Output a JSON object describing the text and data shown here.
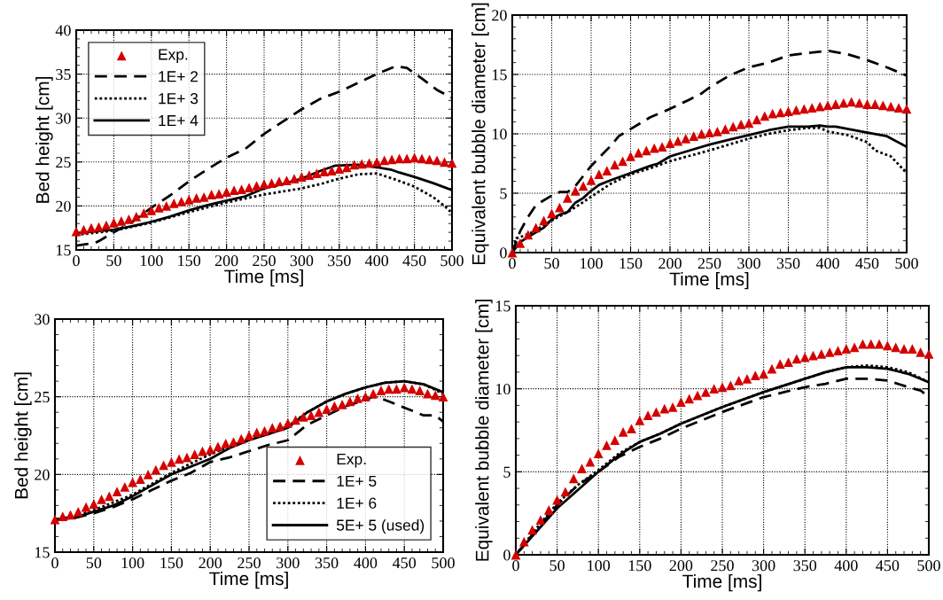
{
  "chart_data": [
    {
      "type": "line",
      "xlabel": "Time [ms]",
      "ylabel": "Bed height [cm]",
      "xlim": [
        0,
        500
      ],
      "ylim": [
        15,
        40
      ],
      "xticks": [
        0,
        50,
        100,
        150,
        200,
        250,
        300,
        350,
        400,
        450,
        500
      ],
      "yticks": [
        15,
        20,
        25,
        30,
        35,
        40
      ],
      "grid": true,
      "legend": "top left",
      "series": [
        {
          "name": "Exp.",
          "type": "scatter",
          "marker": "triangle",
          "color": "#d40000",
          "x": [
            0,
            10,
            20,
            30,
            40,
            50,
            60,
            70,
            80,
            90,
            100,
            110,
            120,
            130,
            140,
            150,
            160,
            170,
            180,
            190,
            200,
            210,
            220,
            230,
            240,
            250,
            260,
            270,
            280,
            290,
            300,
            310,
            320,
            330,
            340,
            350,
            360,
            370,
            380,
            390,
            400,
            410,
            420,
            430,
            440,
            450,
            460,
            470,
            480,
            490,
            500
          ],
          "values": [
            17.1,
            17.3,
            17.5,
            17.6,
            17.8,
            18.1,
            18.3,
            18.5,
            18.8,
            19.2,
            19.5,
            19.8,
            20.0,
            20.3,
            20.5,
            20.7,
            20.9,
            21.0,
            21.3,
            21.4,
            21.6,
            21.8,
            21.9,
            22.1,
            22.3,
            22.5,
            22.6,
            22.8,
            22.9,
            23.1,
            23.3,
            23.5,
            23.7,
            23.9,
            24.0,
            24.2,
            24.4,
            24.7,
            24.8,
            24.9,
            25.0,
            25.2,
            25.3,
            25.4,
            25.4,
            25.5,
            25.4,
            25.3,
            25.2,
            25.0,
            24.9
          ]
        },
        {
          "name": "1E+ 2",
          "line_style": "dashed",
          "color": "#000000",
          "x": [
            0,
            25,
            30,
            50,
            75,
            100,
            125,
            150,
            175,
            200,
            225,
            250,
            275,
            300,
            325,
            350,
            375,
            400,
            425,
            440,
            460,
            480,
            500
          ],
          "values": [
            15.5,
            15.8,
            16.0,
            17.0,
            18.2,
            19.8,
            21.2,
            22.8,
            24.2,
            25.5,
            26.5,
            28.2,
            29.6,
            31.0,
            32.2,
            33.0,
            34.0,
            35.0,
            35.9,
            35.7,
            34.5,
            33.2,
            32.3
          ]
        },
        {
          "name": "1E+ 3",
          "line_style": "dotted",
          "color": "#000000",
          "x": [
            0,
            50,
            100,
            150,
            200,
            250,
            300,
            325,
            350,
            375,
            400,
            425,
            450,
            475,
            490,
            500
          ],
          "values": [
            16.7,
            17.2,
            18.1,
            19.3,
            20.4,
            21.3,
            22.0,
            22.5,
            23.1,
            23.6,
            23.7,
            23.0,
            22.2,
            21.0,
            20.0,
            19.2
          ]
        },
        {
          "name": "1E+ 4",
          "line_style": "solid",
          "color": "#000000",
          "x": [
            0,
            50,
            75,
            100,
            125,
            150,
            175,
            200,
            225,
            250,
            275,
            300,
            325,
            345,
            375,
            400,
            420,
            430,
            450,
            475,
            500
          ],
          "values": [
            16.9,
            17.3,
            17.7,
            18.2,
            18.8,
            19.5,
            20.1,
            20.6,
            21.1,
            22.0,
            22.5,
            23.1,
            24.0,
            24.6,
            24.7,
            24.4,
            24.1,
            23.8,
            23.3,
            22.6,
            21.8
          ]
        }
      ]
    },
    {
      "type": "line",
      "xlabel": "Time [ms]",
      "ylabel": "Equivalent bubble diameter [cm]",
      "xlim": [
        0,
        500
      ],
      "ylim": [
        0,
        20
      ],
      "xticks": [
        0,
        50,
        100,
        150,
        200,
        250,
        300,
        350,
        400,
        450,
        500
      ],
      "yticks": [
        0,
        5,
        10,
        15,
        20
      ],
      "grid": true,
      "series": [
        {
          "type": "scatter",
          "marker": "triangle",
          "color": "#d40000",
          "x": [
            0,
            10,
            20,
            30,
            40,
            50,
            60,
            70,
            80,
            90,
            100,
            110,
            120,
            130,
            140,
            150,
            160,
            170,
            180,
            190,
            200,
            210,
            220,
            230,
            240,
            250,
            260,
            270,
            280,
            290,
            300,
            310,
            320,
            330,
            340,
            350,
            360,
            370,
            380,
            390,
            400,
            410,
            420,
            430,
            440,
            450,
            460,
            470,
            480,
            490,
            500
          ],
          "values": [
            0,
            0.8,
            1.5,
            2.1,
            2.7,
            3.3,
            3.8,
            4.6,
            5.2,
            5.6,
            6.1,
            6.6,
            6.9,
            7.4,
            7.7,
            8.1,
            8.4,
            8.6,
            8.8,
            8.9,
            9.2,
            9.4,
            9.6,
            9.8,
            10.0,
            10.1,
            10.2,
            10.4,
            10.6,
            10.8,
            10.9,
            11.2,
            11.5,
            11.7,
            11.8,
            11.9,
            12.0,
            12.1,
            12.2,
            12.3,
            12.4,
            12.5,
            12.6,
            12.7,
            12.6,
            12.5,
            12.5,
            12.4,
            12.3,
            12.2,
            12.1
          ]
        },
        {
          "line_style": "dashed",
          "color": "#000000",
          "x": [
            0,
            10,
            20,
            30,
            50,
            60,
            70,
            80,
            100,
            125,
            135,
            150,
            175,
            200,
            225,
            240,
            250,
            275,
            300,
            325,
            350,
            375,
            400,
            425,
            450,
            475,
            500
          ],
          "values": [
            0,
            1.8,
            3.0,
            4.0,
            4.8,
            5.1,
            5.1,
            5.6,
            7.3,
            9.0,
            9.8,
            10.4,
            11.4,
            12.1,
            12.9,
            13.4,
            13.9,
            14.9,
            15.6,
            16.0,
            16.6,
            16.8,
            17.0,
            16.7,
            16.2,
            15.6,
            14.9
          ]
        },
        {
          "line_style": "dotted",
          "color": "#000000",
          "x": [
            0,
            5,
            10,
            25,
            50,
            75,
            100,
            125,
            150,
            175,
            200,
            250,
            300,
            325,
            350,
            375,
            390,
            400,
            425,
            450,
            460,
            480,
            500
          ],
          "values": [
            0,
            1.2,
            1.3,
            1.7,
            2.7,
            3.6,
            4.7,
            5.8,
            6.6,
            7.1,
            7.7,
            8.6,
            9.6,
            10.0,
            10.3,
            10.5,
            10.5,
            10.2,
            9.9,
            9.3,
            8.6,
            8.1,
            6.7
          ]
        },
        {
          "line_style": "solid",
          "color": "#000000",
          "x": [
            0,
            10,
            25,
            40,
            50,
            60,
            70,
            80,
            90,
            100,
            110,
            125,
            150,
            175,
            185,
            200,
            225,
            250,
            275,
            300,
            325,
            350,
            375,
            390,
            400,
            410,
            450,
            475,
            500
          ],
          "values": [
            0,
            0.9,
            1.5,
            2.1,
            2.8,
            3.2,
            3.4,
            4.2,
            4.6,
            5.2,
            5.7,
            6.1,
            6.7,
            7.3,
            7.5,
            8.1,
            8.6,
            9.1,
            9.5,
            9.9,
            10.3,
            10.6,
            10.6,
            10.7,
            10.6,
            10.6,
            10.1,
            9.8,
            8.9
          ]
        }
      ]
    },
    {
      "type": "line",
      "xlabel": "Time [ms]",
      "ylabel": "Bed height [cm]",
      "xlim": [
        0,
        500
      ],
      "ylim": [
        15,
        30
      ],
      "xticks": [
        0,
        50,
        100,
        150,
        200,
        250,
        300,
        350,
        400,
        450,
        500
      ],
      "yticks": [
        15,
        20,
        25,
        30
      ],
      "grid": true,
      "legend": "bottom right",
      "series": [
        {
          "name": "Exp.",
          "type": "scatter",
          "marker": "triangle",
          "color": "#d40000",
          "x": [
            0,
            10,
            20,
            30,
            40,
            50,
            60,
            70,
            80,
            90,
            100,
            110,
            120,
            130,
            140,
            150,
            160,
            170,
            180,
            190,
            200,
            210,
            220,
            230,
            240,
            250,
            260,
            270,
            280,
            290,
            300,
            310,
            320,
            330,
            340,
            350,
            360,
            370,
            380,
            390,
            400,
            410,
            420,
            430,
            440,
            450,
            460,
            470,
            480,
            490,
            500
          ],
          "values": [
            17.1,
            17.3,
            17.4,
            17.6,
            17.9,
            18.1,
            18.4,
            18.6,
            18.9,
            19.2,
            19.5,
            19.7,
            20.0,
            20.3,
            20.6,
            20.8,
            21.0,
            21.1,
            21.3,
            21.5,
            21.6,
            21.8,
            22.0,
            22.1,
            22.3,
            22.5,
            22.7,
            22.8,
            23.0,
            23.1,
            23.3,
            23.5,
            23.7,
            23.8,
            24.0,
            24.2,
            24.4,
            24.5,
            24.7,
            24.9,
            25.0,
            25.2,
            25.4,
            25.5,
            25.5,
            25.6,
            25.5,
            25.4,
            25.2,
            25.1,
            25.0
          ]
        },
        {
          "name": "1E+ 5",
          "line_style": "dashed",
          "color": "#000000",
          "x": [
            0,
            25,
            50,
            75,
            100,
            125,
            150,
            175,
            200,
            225,
            250,
            275,
            300,
            325,
            350,
            375,
            400,
            410,
            425,
            450,
            475,
            490,
            500
          ],
          "values": [
            17.1,
            17.2,
            17.5,
            17.9,
            18.4,
            19.0,
            19.6,
            20.1,
            20.8,
            21.1,
            21.5,
            21.9,
            22.2,
            23.2,
            23.8,
            24.4,
            24.8,
            25.0,
            24.8,
            24.3,
            23.8,
            23.8,
            23.4
          ]
        },
        {
          "name": "1E+ 6",
          "line_style": "dotted",
          "color": "#000000",
          "x": [
            0,
            25,
            50,
            75,
            100,
            125,
            150,
            175,
            200,
            225,
            250,
            275,
            300,
            325,
            350,
            375,
            400,
            425,
            450,
            475,
            500
          ],
          "values": [
            17.1,
            17.3,
            17.7,
            18.2,
            18.7,
            19.4,
            20.1,
            20.7,
            21.3,
            21.8,
            22.3,
            22.6,
            23.1,
            24.0,
            24.7,
            25.2,
            25.6,
            25.9,
            26.0,
            25.8,
            25.2
          ]
        },
        {
          "name": "5E+ 5 (used)",
          "line_style": "solid",
          "color": "#000000",
          "x": [
            0,
            25,
            50,
            75,
            100,
            125,
            150,
            175,
            200,
            225,
            250,
            275,
            300,
            325,
            350,
            375,
            400,
            425,
            450,
            475,
            500
          ],
          "values": [
            17.1,
            17.2,
            17.6,
            18.0,
            18.6,
            19.3,
            20.0,
            20.5,
            21.0,
            21.7,
            22.2,
            22.6,
            23.0,
            24.0,
            24.7,
            25.2,
            25.6,
            25.9,
            26.0,
            25.8,
            25.3
          ]
        }
      ]
    },
    {
      "type": "line",
      "xlabel": "Time [ms]",
      "ylabel": "Equivalent bubble diameter [cm]",
      "xlim": [
        0,
        500
      ],
      "ylim": [
        0,
        15
      ],
      "xticks": [
        0,
        50,
        100,
        150,
        200,
        250,
        300,
        350,
        400,
        450,
        500
      ],
      "yticks": [
        0,
        5,
        10,
        15
      ],
      "grid": true,
      "series": [
        {
          "type": "scatter",
          "marker": "triangle",
          "color": "#d40000",
          "x": [
            0,
            10,
            20,
            30,
            40,
            50,
            60,
            70,
            80,
            90,
            100,
            110,
            120,
            130,
            140,
            150,
            160,
            170,
            180,
            190,
            200,
            210,
            220,
            230,
            240,
            250,
            260,
            270,
            280,
            290,
            300,
            310,
            320,
            330,
            340,
            350,
            360,
            370,
            380,
            390,
            400,
            410,
            420,
            430,
            440,
            450,
            460,
            470,
            480,
            490,
            500
          ],
          "values": [
            0,
            0.8,
            1.5,
            2.1,
            2.7,
            3.3,
            3.8,
            4.6,
            5.2,
            5.6,
            6.1,
            6.6,
            6.9,
            7.4,
            7.6,
            8.1,
            8.4,
            8.6,
            8.8,
            8.9,
            9.2,
            9.4,
            9.6,
            9.8,
            10.0,
            10.1,
            10.2,
            10.5,
            10.6,
            10.8,
            10.9,
            11.2,
            11.5,
            11.6,
            11.8,
            11.9,
            12.0,
            12.1,
            12.2,
            12.3,
            12.4,
            12.5,
            12.7,
            12.7,
            12.7,
            12.6,
            12.5,
            12.4,
            12.4,
            12.2,
            12.1
          ]
        },
        {
          "line_style": "dashed",
          "color": "#000000",
          "x": [
            0,
            25,
            50,
            75,
            100,
            125,
            150,
            175,
            200,
            250,
            300,
            325,
            350,
            375,
            400,
            425,
            450,
            475,
            490,
            500
          ],
          "values": [
            0,
            1.5,
            3.0,
            4.2,
            5.0,
            5.9,
            6.5,
            7.0,
            7.6,
            8.6,
            9.5,
            9.8,
            10.1,
            10.3,
            10.6,
            10.6,
            10.5,
            10.1,
            9.9,
            9.5
          ]
        },
        {
          "line_style": "dotted",
          "color": "#000000",
          "x": [
            0,
            25,
            50,
            75,
            100,
            125,
            150,
            175,
            200,
            250,
            300,
            350,
            375,
            400,
            425,
            450,
            475,
            500
          ],
          "values": [
            0,
            1.6,
            3.1,
            4.2,
            5.1,
            6.1,
            6.8,
            7.3,
            7.9,
            8.9,
            9.8,
            10.6,
            11.0,
            11.3,
            11.4,
            11.3,
            11.0,
            10.4
          ]
        },
        {
          "line_style": "solid",
          "color": "#000000",
          "x": [
            0,
            25,
            50,
            75,
            100,
            125,
            150,
            175,
            200,
            250,
            300,
            350,
            375,
            400,
            425,
            450,
            475,
            500
          ],
          "values": [
            0,
            1.4,
            2.8,
            3.9,
            5.0,
            6.0,
            6.8,
            7.3,
            7.9,
            8.9,
            9.8,
            10.6,
            11.0,
            11.3,
            11.3,
            11.2,
            10.9,
            10.4
          ]
        }
      ]
    }
  ]
}
